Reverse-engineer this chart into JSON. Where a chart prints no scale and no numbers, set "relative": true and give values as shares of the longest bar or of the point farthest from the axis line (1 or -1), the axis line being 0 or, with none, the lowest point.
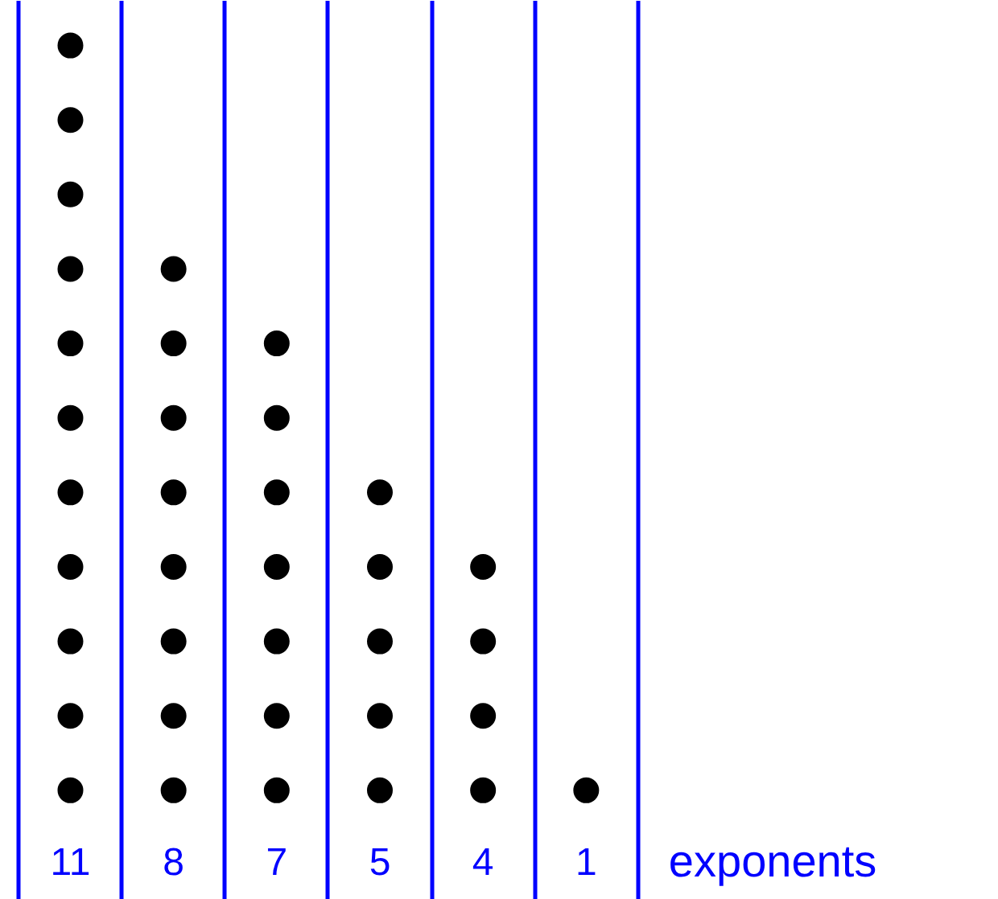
{
  "chart_data": {
    "type": "scatter",
    "xlabel": "exponents",
    "categories": [
      "11",
      "8",
      "7",
      "5",
      "4",
      "1"
    ],
    "relative": true,
    "grid": "x",
    "marker": "circle",
    "series": [
      {
        "color": "#000000",
        "x": [
          "11",
          "11",
          "11",
          "11",
          "11",
          "11",
          "11",
          "11",
          "11",
          "11",
          "11",
          "8",
          "8",
          "8",
          "8",
          "8",
          "8",
          "8",
          "8",
          "7",
          "7",
          "7",
          "7",
          "7",
          "7",
          "7",
          "5",
          "5",
          "5",
          "5",
          "5",
          "4",
          "4",
          "4",
          "4",
          "1"
        ],
        "values": [
          0,
          0.1,
          0.2,
          0.3,
          0.4,
          0.5,
          0.6,
          0.7,
          0.8,
          0.9,
          1,
          0,
          0.1,
          0.2,
          0.3,
          0.4,
          0.5,
          0.6,
          0.7,
          0,
          0.1,
          0.2,
          0.3,
          0.4,
          0.5,
          0.6,
          0,
          0.1,
          0.2,
          0.3,
          0.4,
          0,
          0.1,
          0.2,
          0.3,
          0
        ]
      }
    ]
  }
}
